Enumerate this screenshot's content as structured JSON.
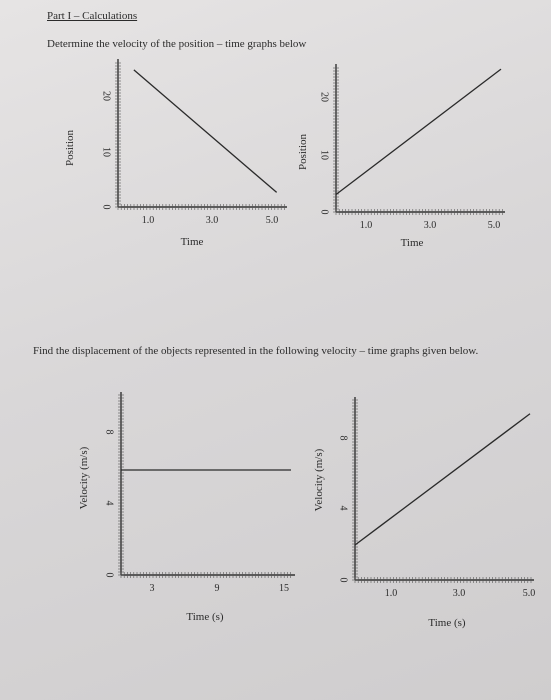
{
  "header": {
    "title": "Part I – Calculations",
    "instruction_position": "Determine the velocity of the position – time graphs below",
    "instruction_velocity": "Find the displacement of the objects represented in the following velocity – time graphs given below."
  },
  "chart_data": [
    {
      "type": "line",
      "title": "",
      "xlabel": "Time",
      "ylabel": "Position",
      "x_ticks": [
        "1.0",
        "3.0",
        "5.0"
      ],
      "y_ticks": [
        "0",
        "10",
        "20"
      ],
      "xlim": [
        0,
        5.2
      ],
      "ylim": [
        0,
        24
      ],
      "series": [
        {
          "x": [
            0.5,
            5.0
          ],
          "y": [
            23.5,
            2.5
          ]
        }
      ]
    },
    {
      "type": "line",
      "title": "",
      "xlabel": "Time",
      "ylabel": "Position",
      "x_ticks": [
        "1.0",
        "3.0",
        "5.0"
      ],
      "y_ticks": [
        "0",
        "10",
        "20"
      ],
      "xlim": [
        0,
        5.2
      ],
      "ylim": [
        0,
        24
      ],
      "series": [
        {
          "x": [
            0,
            5.2
          ],
          "y": [
            3,
            24.5
          ]
        }
      ]
    },
    {
      "type": "line",
      "title": "",
      "xlabel": "Time (s)",
      "ylabel": "Velocity (m/s)",
      "x_ticks": [
        "3",
        "9",
        "15"
      ],
      "y_ticks": [
        "0",
        "4",
        "8"
      ],
      "xlim": [
        0,
        16
      ],
      "ylim": [
        0,
        10
      ],
      "series": [
        {
          "x": [
            0,
            16
          ],
          "y": [
            6,
            6
          ]
        }
      ]
    },
    {
      "type": "line",
      "title": "",
      "xlabel": "Time (s)",
      "ylabel": "Velocity (m/s)",
      "x_ticks": [
        "1.0",
        "3.0",
        "5.0"
      ],
      "y_ticks": [
        "0",
        "4",
        "8"
      ],
      "xlim": [
        0,
        5.3
      ],
      "ylim": [
        0,
        10
      ],
      "series": [
        {
          "x": [
            0,
            5.3
          ],
          "y": [
            2,
            9.5
          ]
        }
      ]
    }
  ]
}
